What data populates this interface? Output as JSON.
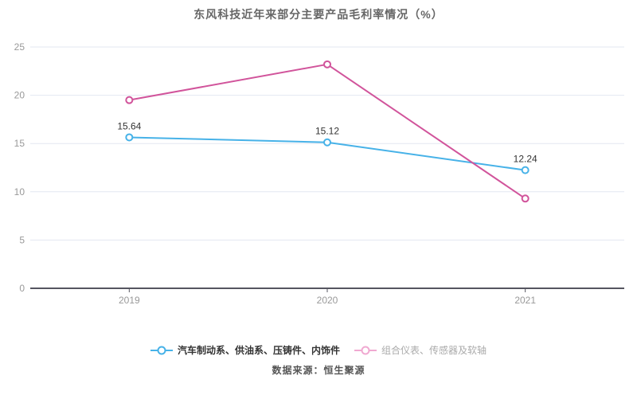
{
  "page": {
    "source_note": "数据来源：恒生聚源"
  },
  "colors": {
    "series1": "#47b2e8",
    "series2": "#d1549b",
    "series2_legend_faded": "#f0a9d1",
    "grid_line": "#e3e7f1",
    "axis_line": "#555560",
    "tick_label": "#999999",
    "title_text": "#666666",
    "data_label": "#333333",
    "legend1_text": "#333333",
    "legend2_text": "#aaaaaa",
    "background": "#ffffff"
  },
  "chart_data": {
    "type": "line",
    "title": "东风科技近年来部分主要产品毛利率情况（%）",
    "categories": [
      "2019",
      "2020",
      "2021"
    ],
    "series": [
      {
        "name": "汽车制动系、供油系、压铸件、内饰件",
        "values": [
          15.64,
          15.12,
          12.24
        ],
        "labels": [
          "15.64",
          "15.12",
          "12.24"
        ],
        "color": "#47b2e8",
        "show_labels": true
      },
      {
        "name": "组合仪表、传感器及软轴",
        "values": [
          19.5,
          23.2,
          9.3
        ],
        "labels": [],
        "color": "#d1549b",
        "show_labels": false
      }
    ],
    "xlabel": "",
    "ylabel": "",
    "ylim": [
      0,
      25
    ],
    "yticks": [
      0,
      5,
      10,
      15,
      20,
      25
    ],
    "grid": true,
    "marker": "hollow-circle",
    "legend_position": "bottom"
  }
}
